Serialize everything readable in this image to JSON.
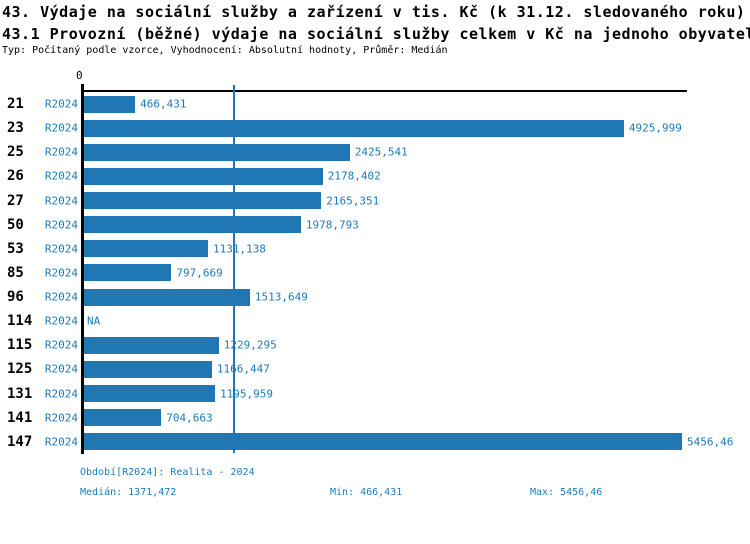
{
  "header": {
    "title_line1": "43. Výdaje na sociální služby a zařízení v tis. Kč (k 31.12. sledovaného roku)",
    "title_line2": "43.1 Provozní (běžné) výdaje na sociální služby celkem v Kč na jednoho obyvatele",
    "subtitle": "Typ: Počítaný podle vzorce, Vyhodnocení: Absolutní hodnoty, Průměr: Medián"
  },
  "chart_data": {
    "type": "bar",
    "orientation": "horizontal",
    "axis_zero_label": "0",
    "x_axis_min": 0,
    "x_axis_max": 5456.46,
    "median_value": 1371.472,
    "series_name": "R2024",
    "categories": [
      "21",
      "23",
      "25",
      "26",
      "27",
      "50",
      "53",
      "85",
      "96",
      "114",
      "115",
      "125",
      "131",
      "141",
      "147"
    ],
    "rows": [
      {
        "id": "21",
        "period": "R2024",
        "value": 466.431,
        "value_label": "466,431"
      },
      {
        "id": "23",
        "period": "R2024",
        "value": 4925.999,
        "value_label": "4925,999"
      },
      {
        "id": "25",
        "period": "R2024",
        "value": 2425.541,
        "value_label": "2425,541"
      },
      {
        "id": "26",
        "period": "R2024",
        "value": 2178.402,
        "value_label": "2178,402"
      },
      {
        "id": "27",
        "period": "R2024",
        "value": 2165.351,
        "value_label": "2165,351"
      },
      {
        "id": "50",
        "period": "R2024",
        "value": 1978.793,
        "value_label": "1978,793"
      },
      {
        "id": "53",
        "period": "R2024",
        "value": 1131.138,
        "value_label": "1131,138"
      },
      {
        "id": "85",
        "period": "R2024",
        "value": 797.669,
        "value_label": "797,669"
      },
      {
        "id": "96",
        "period": "R2024",
        "value": 1513.649,
        "value_label": "1513,649"
      },
      {
        "id": "114",
        "period": "R2024",
        "value": null,
        "value_label": "NA"
      },
      {
        "id": "115",
        "period": "R2024",
        "value": 1229.295,
        "value_label": "1229,295"
      },
      {
        "id": "125",
        "period": "R2024",
        "value": 1166.447,
        "value_label": "1166,447"
      },
      {
        "id": "131",
        "period": "R2024",
        "value": 1195.959,
        "value_label": "1195,959"
      },
      {
        "id": "141",
        "period": "R2024",
        "value": 704.663,
        "value_label": "704,663"
      },
      {
        "id": "147",
        "period": "R2024",
        "value": 5456.46,
        "value_label": "5456,46"
      }
    ],
    "colors": {
      "bar": "#2077b4",
      "label_text": "#1c7bb8",
      "median_line": "#2077b4",
      "axis": "#000000"
    },
    "grid": "median-line-only",
    "legend_position": "none"
  },
  "footer": {
    "period_line": "Období[R2024]: Realita - 2024",
    "median_label": "Medián: 1371,472",
    "min_label": "Min: 466,431",
    "max_label": "Max: 5456,46"
  }
}
